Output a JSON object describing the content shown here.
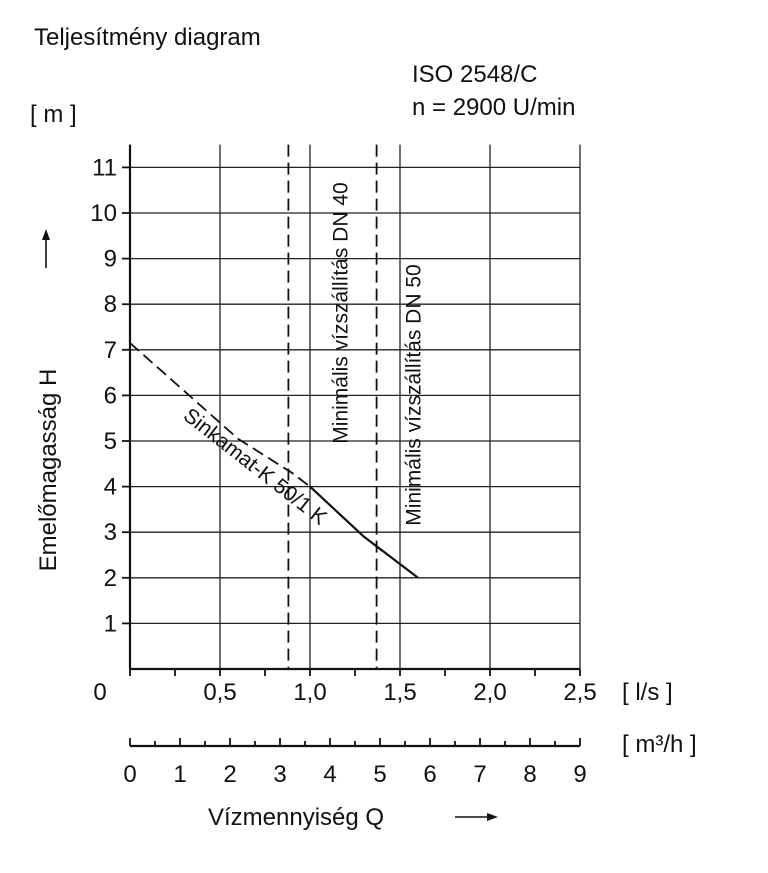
{
  "chart_data": {
    "type": "line",
    "title": "Teljesítmény diagram",
    "standard": "ISO 2548/C",
    "speed": "n = 2900 U/min",
    "ylabel": "Emelőmagasság H",
    "yunit": "[ m ]",
    "xlabel": "Vízmennyiség Q",
    "xunit_ls": "[ l/s ]",
    "xunit_m3h": "[ m³/h ]",
    "ylim": [
      0,
      11.5
    ],
    "xlim_ls": [
      0,
      2.5
    ],
    "xlim_m3h": [
      0,
      9
    ],
    "origin_label": "0",
    "y_ticks": [
      "1",
      "2",
      "3",
      "4",
      "5",
      "6",
      "7",
      "8",
      "9",
      "10",
      "11"
    ],
    "x_ticks_ls": [
      "0,5",
      "1,0",
      "1,5",
      "2,0",
      "2,5"
    ],
    "x_ticks_m3h": [
      "0",
      "1",
      "2",
      "3",
      "4",
      "5",
      "6",
      "7",
      "8",
      "9"
    ],
    "grid": true,
    "series": [
      {
        "name": "Sinkamat-K 50/1 K",
        "style": "dashed-then-solid",
        "x": [
          0,
          0.3,
          0.6,
          0.9,
          1.0,
          1.3,
          1.6
        ],
        "y": [
          7.15,
          6.1,
          5.05,
          4.3,
          4.0,
          2.9,
          2.0
        ],
        "solid_from_x": 1.0
      }
    ],
    "vertical_markers": [
      {
        "label": "Minimális vízszállítás DN 40",
        "x": 0.88
      },
      {
        "label": "Minimális vízszállítás DN 50",
        "x": 1.37
      }
    ]
  }
}
